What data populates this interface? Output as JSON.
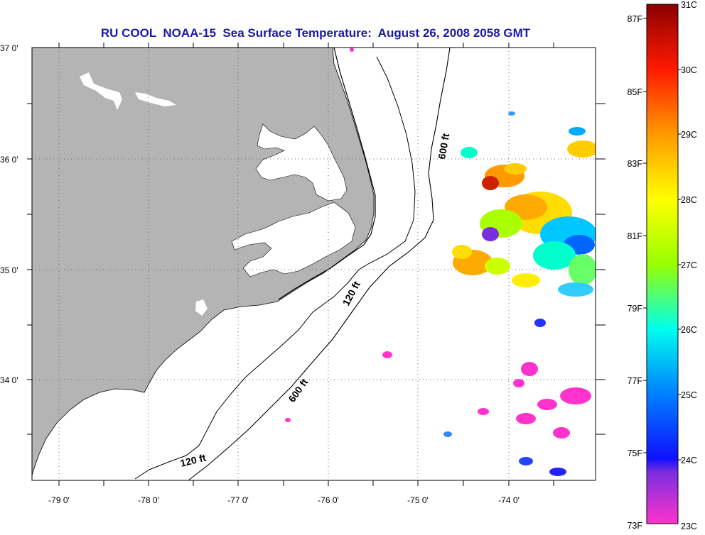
{
  "title": "RU COOL  NOAA-15  Sea Surface Temperature:  August 26, 2008 2058 GMT",
  "lat_labels": [
    "37 0'",
    "36 0'",
    "35 0'",
    "34 0'"
  ],
  "lon_labels": [
    "-79 0'",
    "-78 0'",
    "-77 0'",
    "-76 0'",
    "-75 0'",
    "-74 0'"
  ],
  "contour_labels": [
    "600 ft",
    "120 ft",
    "600 ft",
    "120 ft"
  ],
  "colorbar": {
    "fahrenheit_labels": [
      "87F",
      "85F",
      "83F",
      "81F",
      "79F",
      "77F",
      "75F",
      "73F"
    ],
    "celsius_labels": [
      "31C",
      "30C",
      "29C",
      "28C",
      "27C",
      "26C",
      "25C",
      "24C",
      "23C"
    ],
    "colors": [
      "#ff33cc",
      "#6a2ce0",
      "#1010ff",
      "#00b4ff",
      "#00ffee",
      "#99ff00",
      "#ffff00",
      "#ff9900",
      "#ff1a00",
      "#8b0000"
    ]
  },
  "colors": {
    "land": "#b4b4b4",
    "title": "#1a1aa6",
    "grid": "#666666"
  }
}
